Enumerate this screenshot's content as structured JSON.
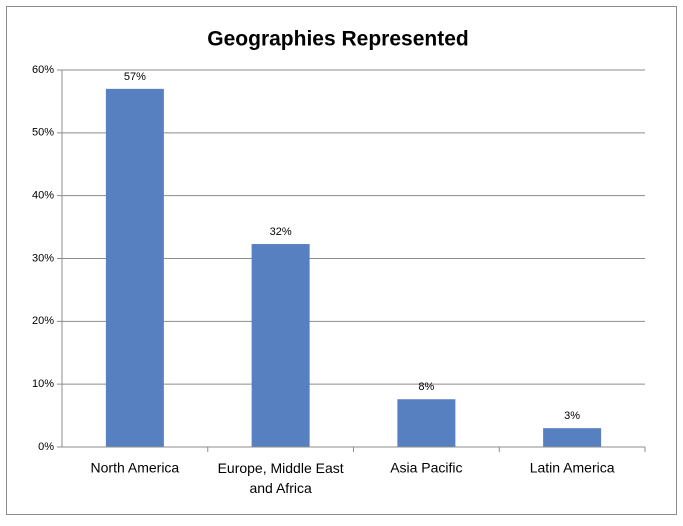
{
  "chart_data": {
    "type": "bar",
    "title": "Geographies Represented",
    "categories": [
      "North America",
      "Europe, Middle East and Africa",
      "Asia Pacific",
      "Latin America"
    ],
    "values": [
      57,
      32.3,
      7.6,
      3
    ],
    "value_labels": [
      "57%",
      "32%",
      "8%",
      "3%"
    ],
    "color": "#5680c0",
    "ylim": [
      0,
      60
    ],
    "yticks": [
      {
        "value": 0,
        "label": "0%"
      },
      {
        "value": 10,
        "label": "10%"
      },
      {
        "value": 20,
        "label": "20%"
      },
      {
        "value": 30,
        "label": "30%"
      },
      {
        "value": 40,
        "label": "40%"
      },
      {
        "value": 50,
        "label": "50%"
      },
      {
        "value": 60,
        "label": "60%"
      }
    ],
    "grid": true
  }
}
